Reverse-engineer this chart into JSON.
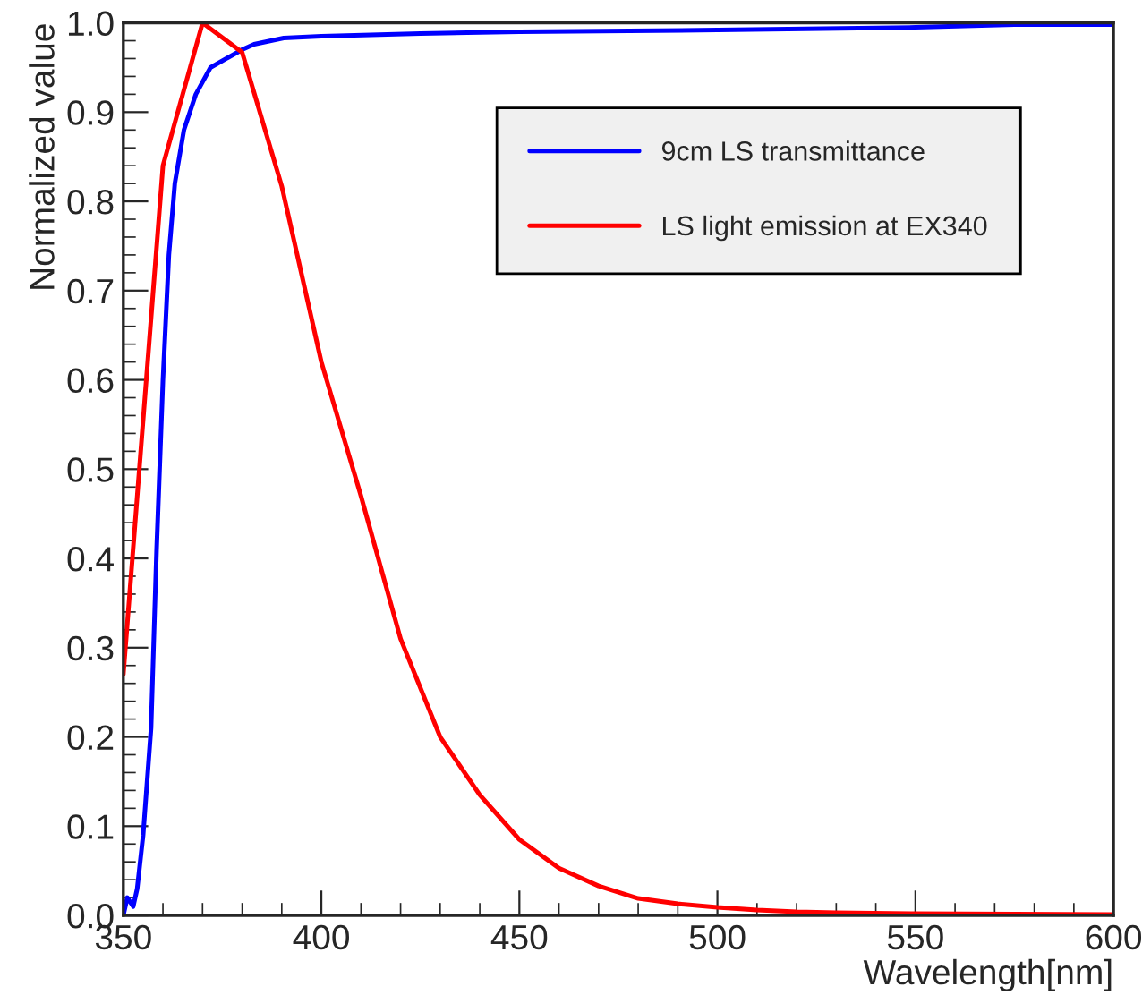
{
  "chart_data": {
    "type": "line",
    "xlabel": "Wavelength[nm]",
    "ylabel": "Normalized value",
    "xlim": [
      350,
      600
    ],
    "xticks": [
      350,
      400,
      450,
      500,
      550,
      600
    ],
    "ylim": [
      0,
      1
    ],
    "yticks": [
      {
        "value": 0,
        "label": "0.0"
      },
      {
        "value": 0.1,
        "label": "0.1"
      },
      {
        "value": 0.2,
        "label": "0.2"
      },
      {
        "value": 0.3,
        "label": "0.3"
      },
      {
        "value": 0.4,
        "label": "0.4"
      },
      {
        "value": 0.5,
        "label": "0.5"
      },
      {
        "value": 0.6,
        "label": "0.6"
      },
      {
        "value": 0.7,
        "label": "0.7"
      },
      {
        "value": 0.8,
        "label": "0.8"
      },
      {
        "value": 0.9,
        "label": "0.9"
      },
      {
        "value": 1,
        "label": "1.0"
      }
    ],
    "grid": false,
    "legend": "top right",
    "marker": "none",
    "line_style": "solid",
    "series": [
      {
        "name": "9cm LS transmittance",
        "color": "#0000ff",
        "x": [
          350,
          351,
          352.5,
          353.5,
          355,
          357,
          358.4,
          360,
          361.5,
          363,
          365.3,
          368.3,
          372,
          380,
          383,
          390.5,
          400,
          425,
          450,
          500,
          550,
          575,
          600
        ],
        "values": [
          0.0,
          0.02,
          0.01,
          0.03,
          0.09,
          0.21,
          0.41,
          0.6,
          0.74,
          0.82,
          0.88,
          0.92,
          0.95,
          0.97,
          0.976,
          0.983,
          0.985,
          0.988,
          0.99,
          0.992,
          0.995,
          0.998,
          0.998
        ]
      },
      {
        "name": "LS light emission at EX340",
        "color": "#ff0000",
        "x": [
          350,
          360,
          370,
          380,
          390,
          400,
          410,
          420,
          430,
          440,
          450,
          460,
          470,
          480,
          490,
          500,
          510,
          520,
          530,
          550,
          600
        ],
        "values": [
          0.27,
          0.84,
          1.0,
          0.967,
          0.817,
          0.62,
          0.47,
          0.31,
          0.2,
          0.135,
          0.085,
          0.053,
          0.033,
          0.019,
          0.013,
          0.009,
          0.006,
          0.004,
          0.003,
          0.002,
          0.001
        ]
      }
    ]
  }
}
